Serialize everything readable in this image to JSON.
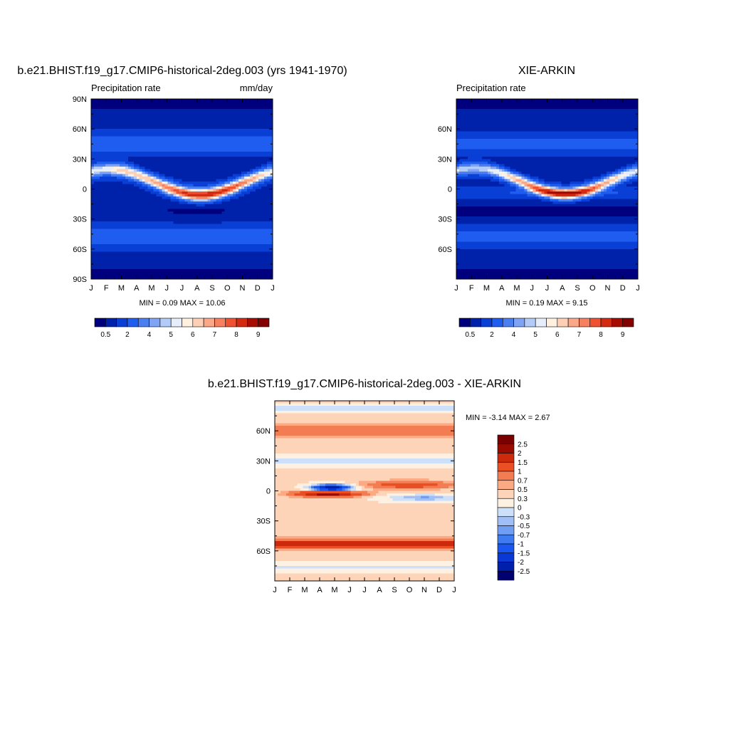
{
  "colors": {
    "abs_scale": [
      "#00007f",
      "#0022aa",
      "#0a3fd6",
      "#1f5cf0",
      "#4a7ff2",
      "#7fa4f5",
      "#b2cbf8",
      "#e6eefb",
      "#fff0e0",
      "#fdd0b5",
      "#fba889",
      "#f7805f",
      "#ee5233",
      "#d32a10",
      "#a80c00",
      "#820000"
    ],
    "diff_scale": [
      "#000070",
      "#001faa",
      "#0a38d4",
      "#1a56ef",
      "#3f7bf0",
      "#6f9ef4",
      "#9fbff6",
      "#cce0fa",
      "#fff1e2",
      "#fdd4b8",
      "#fbaa84",
      "#f47c52",
      "#ea4e23",
      "#cc2a0b",
      "#990a00",
      "#7a0000"
    ]
  },
  "panels": [
    {
      "id": "model",
      "title": "b.e21.BHIST.f19_g17.CMIP6-historical-2deg.003 (yrs 1941-1970)",
      "left_label": "Precipitation rate",
      "right_label": "mm/day",
      "min_max": "MIN =   0.09 MAX =  10.06",
      "lat_ticks": [
        "90N",
        "60N",
        "30N",
        "0",
        "30S",
        "60S",
        "90S"
      ]
    },
    {
      "id": "obs",
      "title": "XIE-ARKIN",
      "left_label": "Precipitation rate",
      "right_label": "",
      "min_max": "MIN =   0.19 MAX =   9.15",
      "lat_ticks": [
        "60N",
        "30N",
        "0",
        "30S",
        "60S"
      ]
    },
    {
      "id": "diff",
      "title": "b.e21.BHIST.f19_g17.CMIP6-historical-2deg.003 - XIE-ARKIN",
      "left_label": "",
      "right_label": "",
      "min_max": "MIN =  -3.14 MAX =   2.67",
      "lat_ticks": [
        "60N",
        "30N",
        "0",
        "30S",
        "60S"
      ]
    }
  ],
  "month_ticks": [
    "J",
    "F",
    "M",
    "A",
    "M",
    "J",
    "J",
    "A",
    "S",
    "O",
    "N",
    "D",
    "J"
  ],
  "colorbar_abs_labels": [
    "0.5",
    "2",
    "4",
    "5",
    "6",
    "7",
    "8",
    "9"
  ],
  "colorbar_diff_labels": [
    "2.5",
    "2",
    "1.5",
    "1",
    "0.7",
    "0.5",
    "0.3",
    "0",
    "-0.3",
    "-0.5",
    "-0.7",
    "-1",
    "-1.5",
    "-2",
    "-2.5"
  ],
  "chart_data": [
    {
      "type": "heatmap",
      "title": "b.e21.BHIST.f19_g17.CMIP6-historical-2deg.003 (yrs 1941-1970)",
      "subtitle_left": "Precipitation rate",
      "units": "mm/day",
      "x_ticks": [
        "J",
        "F",
        "M",
        "A",
        "M",
        "J",
        "J",
        "A",
        "S",
        "O",
        "N",
        "D",
        "J"
      ],
      "y_ticks": [
        "90N",
        "60N",
        "30N",
        "0",
        "30S",
        "60S",
        "90S"
      ],
      "ylim": [
        -90,
        90
      ],
      "levels": [
        0.5,
        2,
        4,
        5,
        6,
        7,
        8,
        9
      ],
      "min": 0.09,
      "max": 10.06
    },
    {
      "type": "heatmap",
      "title": "XIE-ARKIN",
      "subtitle_left": "Precipitation rate",
      "x_ticks": [
        "J",
        "F",
        "M",
        "A",
        "M",
        "J",
        "J",
        "A",
        "S",
        "O",
        "N",
        "D",
        "J"
      ],
      "y_ticks": [
        "60N",
        "30N",
        "0",
        "30S",
        "60S"
      ],
      "ylim": [
        -90,
        90
      ],
      "levels": [
        0.5,
        2,
        4,
        5,
        6,
        7,
        8,
        9
      ],
      "min": 0.19,
      "max": 9.15
    },
    {
      "type": "heatmap",
      "title": "b.e21.BHIST.f19_g17.CMIP6-historical-2deg.003 - XIE-ARKIN",
      "x_ticks": [
        "J",
        "F",
        "M",
        "A",
        "M",
        "J",
        "J",
        "A",
        "S",
        "O",
        "N",
        "D",
        "J"
      ],
      "y_ticks": [
        "60N",
        "30N",
        "0",
        "30S",
        "60S"
      ],
      "ylim": [
        -90,
        90
      ],
      "levels": [
        -2.5,
        -2,
        -1.5,
        -1,
        -0.7,
        -0.5,
        -0.3,
        0,
        0.3,
        0.5,
        0.7,
        1,
        1.5,
        2,
        2.5
      ],
      "min": -3.14,
      "max": 2.67
    }
  ]
}
